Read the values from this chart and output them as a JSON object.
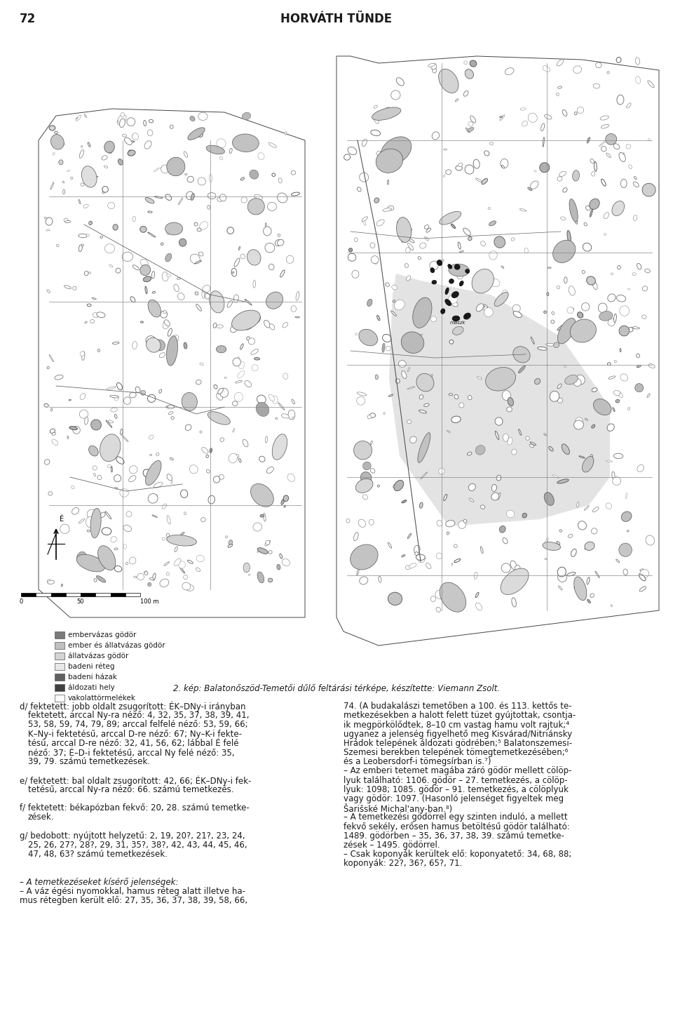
{
  "page_number": "72",
  "header_title": "HORVÁTH TÜNDE",
  "caption": "2. kép: Balatonőszöd-Temetői dűlő feltárási térképe, készítette: Viemann Zsolt.",
  "left_column_text": [
    {
      "text": "d/ fektetett: jobb oldalt zsugorított: ÉK–DNy-i irányban",
      "indent": 0,
      "style": "normal"
    },
    {
      "text": "fektetett, arccal Ny-ra néző: 4, 32, 35, 37, 38, 39, 41,",
      "indent": 1,
      "style": "normal"
    },
    {
      "text": "53, 58, 59, 74, 79, 89; arccal felfelé néző: 53, 59, 66;",
      "indent": 1,
      "style": "normal"
    },
    {
      "text": "K–Ny-i fektetésű, arccal D-re néző: 67; Ny–K-i fekte-",
      "indent": 1,
      "style": "normal"
    },
    {
      "text": "tésű, arccal D-re néző: 32, 41, 56, 62; lábbal É felé",
      "indent": 1,
      "style": "normal"
    },
    {
      "text": "néző: 37; É–D-i fektetésű, arccal Ny felé néző: 35,",
      "indent": 1,
      "style": "normal"
    },
    {
      "text": "39, 79. számú temetkezések.",
      "indent": 1,
      "style": "normal"
    },
    {
      "text": "",
      "indent": 0,
      "style": "normal"
    },
    {
      "text": "e/ fektetett: bal oldalt zsugorított: 42, 66; ÉK–DNy-i fek-",
      "indent": 0,
      "style": "normal"
    },
    {
      "text": "tetésű, arccal Ny-ra néző: 66. számú temetkezés.",
      "indent": 1,
      "style": "normal"
    },
    {
      "text": "",
      "indent": 0,
      "style": "normal"
    },
    {
      "text": "f/ fektetett: békapózban fekvő: 20, 28. számú temetke-",
      "indent": 0,
      "style": "normal"
    },
    {
      "text": "zések.",
      "indent": 1,
      "style": "normal"
    },
    {
      "text": "",
      "indent": 0,
      "style": "normal"
    },
    {
      "text": "g/ bedobott: nyújtott helyzetű: 2, 19, 20?, 21?, 23, 24,",
      "indent": 0,
      "style": "normal"
    },
    {
      "text": "25, 26, 27?, 28?, 29, 31, 35?, 38?, 42, 43, 44, 45, 46,",
      "indent": 1,
      "style": "normal"
    },
    {
      "text": "47, 48, 63? számú temetkezések.",
      "indent": 1,
      "style": "normal"
    },
    {
      "text": "",
      "indent": 0,
      "style": "normal"
    },
    {
      "text": "",
      "indent": 0,
      "style": "normal"
    },
    {
      "text": "– A temetkezéseket kísérő jelenségek:",
      "indent": 0,
      "style": "italic"
    },
    {
      "text": "– A váz égési nyomokkal, hamus réteg alatt illetve ha-",
      "indent": 0,
      "style": "normal"
    },
    {
      "text": "mus rétegben került elő: 27, 35, 36, 37, 38, 39, 58, 66,",
      "indent": 0,
      "style": "normal"
    }
  ],
  "right_column_text": [
    {
      "text": "74. (A budakalászi temetőben a 100. és 113. kettős te-",
      "style": "normal"
    },
    {
      "text": "metkezésekben a halott felett tüzet gyújtottak, csontja-",
      "style": "normal"
    },
    {
      "text": "ik megpörkölődtek, 8–10 cm vastag hamu volt rajtuk;⁴",
      "style": "normal"
    },
    {
      "text": "ugyanez a jelenség figyelhető meg Kisvárad/Nitriánsky",
      "style": "normal"
    },
    {
      "text": "Hrádok telepének áldozati gödrében;⁵ Balatonszemesi-",
      "style": "normal"
    },
    {
      "text": "Szemesi berekben telepének tömegtemetkezésében;⁶",
      "style": "normal"
    },
    {
      "text": "és a Leobersdorf-i tömegsírban is.⁷)",
      "style": "normal"
    },
    {
      "text": "– Az emberi tetemet magába záró gödör mellett cölöp-",
      "style": "normal"
    },
    {
      "text": "lyuk található: 1106. gödör – 27. temetkezés, a cölöp-",
      "style": "normal"
    },
    {
      "text": "lyuk: 1098; 1085. gödör – 91. temetkezés, a cölöplyuk",
      "style": "normal"
    },
    {
      "text": "vagy gödör: 1097. (Hasonló jelenséget figyeltek meg",
      "style": "normal"
    },
    {
      "text": "Šarišské Michal'any-ban.⁸)",
      "style": "normal"
    },
    {
      "text": "– A temetkezési gödörrel egy szinten induló, a mellett",
      "style": "normal"
    },
    {
      "text": "fekvő sekély, erősen hamus betöltésű gödör található:",
      "style": "normal"
    },
    {
      "text": "1489. gödörben – 35, 36, 37, 38, 39. számú temetke-",
      "style": "normal"
    },
    {
      "text": "zések – 1495. gödörrel.",
      "style": "normal"
    },
    {
      "text": "– Csak koponyák kerültek elő: koponyatető: 34, 68, 88;",
      "style": "normal"
    },
    {
      "text": "koponyák: 22?, 36?, 65?, 71.",
      "style": "normal"
    }
  ],
  "legend_items": [
    {
      "color": "#7a7a7a",
      "label": "embervázas gödör"
    },
    {
      "color": "#c0c0c0",
      "label": "ember és állatvázas gödör"
    },
    {
      "color": "#d4d4d4",
      "label": "állatvázas gödör"
    },
    {
      "color": "#e8e8e8",
      "label": "badeni réteg"
    },
    {
      "color": "#606060",
      "label": "badeni házak"
    },
    {
      "color": "#404040",
      "label": "áldozati hely"
    },
    {
      "color": "#ffffff",
      "label": "vakolattörmelékek"
    }
  ],
  "bg_color": "#ffffff",
  "text_color": "#1a1a1a",
  "map_bg": "#ffffff",
  "font_size_header": 12,
  "font_size_body": 8.5,
  "font_size_caption": 8.5,
  "font_size_legend": 7.5
}
